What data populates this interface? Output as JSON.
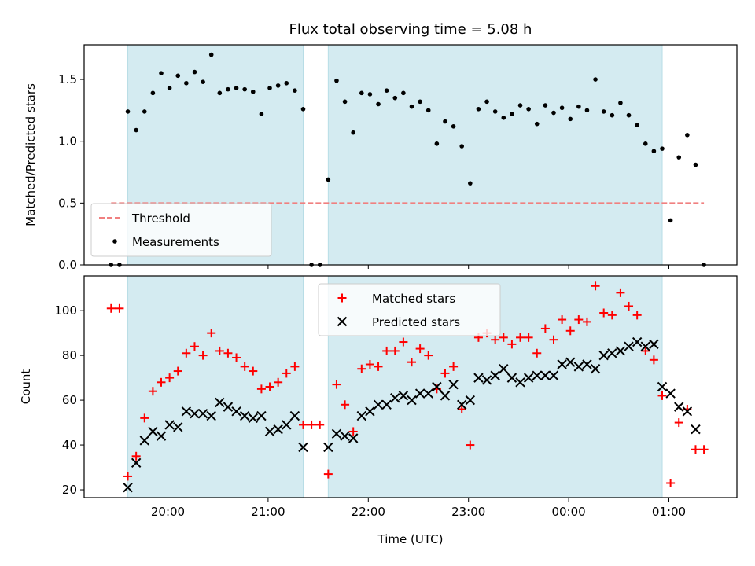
{
  "chart_data": {
    "type": "scatter",
    "title": "Flux total observing time = 5.08 h",
    "xlabel": "Time (UTC)",
    "x_ticks": [
      "20:00",
      "21:00",
      "22:00",
      "23:00",
      "00:00",
      "01:00"
    ],
    "colors": {
      "shade": "#d4ebf1",
      "threshold": "#f08080",
      "measurements": "#000000",
      "matched": "#ff0000",
      "predicted": "#000000"
    },
    "shaded_intervals": [
      [
        "19:36",
        "21:21"
      ],
      [
        "21:36",
        "00:56"
      ]
    ],
    "panels": [
      {
        "ylabel": "Matched/Predicted stars",
        "ylim": [
          0,
          1.78
        ],
        "yticks": [
          "0.0",
          "0.5",
          "1.0",
          "1.5"
        ],
        "legend_position": "lower-left",
        "threshold": {
          "name": "Threshold",
          "value": 0.5,
          "x": [
            "19:26",
            "01:21"
          ]
        },
        "measurements": {
          "name": "Measurements",
          "points": [
            [
              "19:26",
              0.0
            ],
            [
              "19:31",
              0.0
            ],
            [
              "19:36",
              1.24
            ],
            [
              "19:41",
              1.09
            ],
            [
              "19:46",
              1.24
            ],
            [
              "19:51",
              1.39
            ],
            [
              "19:56",
              1.55
            ],
            [
              "20:01",
              1.43
            ],
            [
              "20:06",
              1.53
            ],
            [
              "20:11",
              1.47
            ],
            [
              "20:16",
              1.56
            ],
            [
              "20:21",
              1.48
            ],
            [
              "20:26",
              1.7
            ],
            [
              "20:31",
              1.39
            ],
            [
              "20:36",
              1.42
            ],
            [
              "20:41",
              1.43
            ],
            [
              "20:46",
              1.42
            ],
            [
              "20:51",
              1.4
            ],
            [
              "20:56",
              1.22
            ],
            [
              "21:01",
              1.43
            ],
            [
              "21:06",
              1.45
            ],
            [
              "21:11",
              1.47
            ],
            [
              "21:16",
              1.41
            ],
            [
              "21:21",
              1.26
            ],
            [
              "21:26",
              0.0
            ],
            [
              "21:31",
              0.0
            ],
            [
              "21:36",
              0.69
            ],
            [
              "21:41",
              1.49
            ],
            [
              "21:46",
              1.32
            ],
            [
              "21:51",
              1.07
            ],
            [
              "21:56",
              1.39
            ],
            [
              "22:01",
              1.38
            ],
            [
              "22:06",
              1.3
            ],
            [
              "22:11",
              1.41
            ],
            [
              "22:16",
              1.35
            ],
            [
              "22:21",
              1.39
            ],
            [
              "22:26",
              1.28
            ],
            [
              "22:31",
              1.32
            ],
            [
              "22:36",
              1.25
            ],
            [
              "22:41",
              0.98
            ],
            [
              "22:46",
              1.16
            ],
            [
              "22:51",
              1.12
            ],
            [
              "22:56",
              0.96
            ],
            [
              "23:01",
              0.66
            ],
            [
              "23:06",
              1.26
            ],
            [
              "23:11",
              1.32
            ],
            [
              "23:16",
              1.24
            ],
            [
              "23:21",
              1.19
            ],
            [
              "23:26",
              1.22
            ],
            [
              "23:31",
              1.29
            ],
            [
              "23:36",
              1.26
            ],
            [
              "23:41",
              1.14
            ],
            [
              "23:46",
              1.29
            ],
            [
              "23:51",
              1.23
            ],
            [
              "23:56",
              1.27
            ],
            [
              "00:01",
              1.18
            ],
            [
              "00:06",
              1.28
            ],
            [
              "00:11",
              1.25
            ],
            [
              "00:16",
              1.5
            ],
            [
              "00:21",
              1.24
            ],
            [
              "00:26",
              1.21
            ],
            [
              "00:31",
              1.31
            ],
            [
              "00:36",
              1.21
            ],
            [
              "00:41",
              1.13
            ],
            [
              "00:46",
              0.98
            ],
            [
              "00:51",
              0.92
            ],
            [
              "00:56",
              0.94
            ],
            [
              "01:01",
              0.36
            ],
            [
              "01:06",
              0.87
            ],
            [
              "01:11",
              1.05
            ],
            [
              "01:16",
              0.81
            ],
            [
              "01:21",
              0.0
            ]
          ]
        }
      },
      {
        "ylabel": "Count",
        "ylim": [
          16.5,
          115.5
        ],
        "yticks": [
          "20",
          "40",
          "60",
          "80",
          "100"
        ],
        "legend_position": "upper-center",
        "series": [
          {
            "name": "Matched stars",
            "marker": "plus",
            "points": [
              [
                "19:26",
                101
              ],
              [
                "19:31",
                101
              ],
              [
                "19:36",
                26
              ],
              [
                "19:41",
                35
              ],
              [
                "19:46",
                52
              ],
              [
                "19:51",
                64
              ],
              [
                "19:56",
                68
              ],
              [
                "20:01",
                70
              ],
              [
                "20:06",
                73
              ],
              [
                "20:11",
                81
              ],
              [
                "20:16",
                84
              ],
              [
                "20:21",
                80
              ],
              [
                "20:26",
                90
              ],
              [
                "20:31",
                82
              ],
              [
                "20:36",
                81
              ],
              [
                "20:41",
                79
              ],
              [
                "20:46",
                75
              ],
              [
                "20:51",
                73
              ],
              [
                "20:56",
                65
              ],
              [
                "21:01",
                66
              ],
              [
                "21:06",
                68
              ],
              [
                "21:11",
                72
              ],
              [
                "21:16",
                75
              ],
              [
                "21:21",
                49
              ],
              [
                "21:26",
                49
              ],
              [
                "21:31",
                49
              ],
              [
                "21:36",
                27
              ],
              [
                "21:41",
                67
              ],
              [
                "21:46",
                58
              ],
              [
                "21:51",
                46
              ],
              [
                "21:56",
                74
              ],
              [
                "22:01",
                76
              ],
              [
                "22:06",
                75
              ],
              [
                "22:11",
                82
              ],
              [
                "22:16",
                82
              ],
              [
                "22:21",
                86
              ],
              [
                "22:26",
                77
              ],
              [
                "22:31",
                83
              ],
              [
                "22:36",
                80
              ],
              [
                "22:41",
                65
              ],
              [
                "22:46",
                72
              ],
              [
                "22:51",
                75
              ],
              [
                "22:56",
                56
              ],
              [
                "23:01",
                40
              ],
              [
                "23:06",
                88
              ],
              [
                "23:11",
                90
              ],
              [
                "23:16",
                87
              ],
              [
                "23:21",
                88
              ],
              [
                "23:26",
                85
              ],
              [
                "23:31",
                88
              ],
              [
                "23:36",
                88
              ],
              [
                "23:41",
                81
              ],
              [
                "23:46",
                92
              ],
              [
                "23:51",
                87
              ],
              [
                "23:56",
                96
              ],
              [
                "00:01",
                91
              ],
              [
                "00:06",
                96
              ],
              [
                "00:11",
                95
              ],
              [
                "00:16",
                111
              ],
              [
                "00:21",
                99
              ],
              [
                "00:26",
                98
              ],
              [
                "00:31",
                108
              ],
              [
                "00:36",
                102
              ],
              [
                "00:41",
                98
              ],
              [
                "00:46",
                82
              ],
              [
                "00:51",
                78
              ],
              [
                "00:56",
                62
              ],
              [
                "01:01",
                23
              ],
              [
                "01:06",
                50
              ],
              [
                "01:11",
                56
              ],
              [
                "01:16",
                38
              ],
              [
                "01:21",
                38
              ]
            ]
          },
          {
            "name": "Predicted stars",
            "marker": "x",
            "points": [
              [
                "19:36",
                21
              ],
              [
                "19:41",
                32
              ],
              [
                "19:46",
                42
              ],
              [
                "19:51",
                46
              ],
              [
                "19:56",
                44
              ],
              [
                "20:01",
                49
              ],
              [
                "20:06",
                48
              ],
              [
                "20:11",
                55
              ],
              [
                "20:16",
                54
              ],
              [
                "20:21",
                54
              ],
              [
                "20:26",
                53
              ],
              [
                "20:31",
                59
              ],
              [
                "20:36",
                57
              ],
              [
                "20:41",
                55
              ],
              [
                "20:46",
                53
              ],
              [
                "20:51",
                52
              ],
              [
                "20:56",
                53
              ],
              [
                "21:01",
                46
              ],
              [
                "21:06",
                47
              ],
              [
                "21:11",
                49
              ],
              [
                "21:16",
                53
              ],
              [
                "21:21",
                39
              ],
              [
                "21:36",
                39
              ],
              [
                "21:41",
                45
              ],
              [
                "21:46",
                44
              ],
              [
                "21:51",
                43
              ],
              [
                "21:56",
                53
              ],
              [
                "22:01",
                55
              ],
              [
                "22:06",
                58
              ],
              [
                "22:11",
                58
              ],
              [
                "22:16",
                61
              ],
              [
                "22:21",
                62
              ],
              [
                "22:26",
                60
              ],
              [
                "22:31",
                63
              ],
              [
                "22:36",
                63
              ],
              [
                "22:41",
                66
              ],
              [
                "22:46",
                62
              ],
              [
                "22:51",
                67
              ],
              [
                "22:56",
                58
              ],
              [
                "23:01",
                60
              ],
              [
                "23:06",
                70
              ],
              [
                "23:11",
                69
              ],
              [
                "23:16",
                71
              ],
              [
                "23:21",
                74
              ],
              [
                "23:26",
                70
              ],
              [
                "23:31",
                68
              ],
              [
                "23:36",
                70
              ],
              [
                "23:41",
                71
              ],
              [
                "23:46",
                71
              ],
              [
                "23:51",
                71
              ],
              [
                "23:56",
                76
              ],
              [
                "00:01",
                77
              ],
              [
                "00:06",
                75
              ],
              [
                "00:11",
                76
              ],
              [
                "00:16",
                74
              ],
              [
                "00:21",
                80
              ],
              [
                "00:26",
                81
              ],
              [
                "00:31",
                82
              ],
              [
                "00:36",
                84
              ],
              [
                "00:41",
                86
              ],
              [
                "00:46",
                84
              ],
              [
                "00:51",
                85
              ],
              [
                "00:56",
                66
              ],
              [
                "01:01",
                63
              ],
              [
                "01:06",
                57
              ],
              [
                "01:11",
                55
              ],
              [
                "01:16",
                47
              ]
            ]
          }
        ]
      }
    ]
  }
}
